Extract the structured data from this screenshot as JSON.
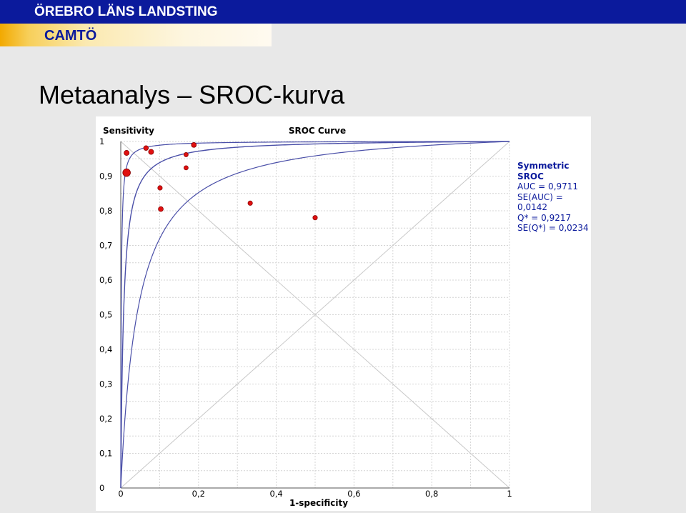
{
  "header": {
    "organization": "ÖREBRO LÄNS LANDSTING",
    "unit": "CAMTÖ"
  },
  "slide": {
    "title": "Metaanalys – SROC-kurva"
  },
  "colors": {
    "brand_blue": "#0b1a9c",
    "accent_orange": "#f2a900",
    "point_red": "#e01010",
    "curve_blue": "#4a4fa8",
    "grid": "#d4d4d4"
  },
  "chart_data": {
    "type": "scatter",
    "title": "SROC Curve",
    "xlabel": "1-specificity",
    "ylabel": "Sensitivity",
    "xlim": [
      0,
      1
    ],
    "ylim": [
      0,
      1
    ],
    "x_ticks": [
      "0",
      "0,2",
      "0,4",
      "0,6",
      "0,8",
      "1"
    ],
    "y_ticks": [
      "0",
      "0,1",
      "0,2",
      "0,3",
      "0,4",
      "0,5",
      "0,6",
      "0,7",
      "0,8",
      "0,9",
      "1"
    ],
    "grid": true,
    "auc": 0.9711,
    "q_star": 0.9217,
    "points": [
      {
        "x": 0.015,
        "y": 0.91,
        "weight": 3.0
      },
      {
        "x": 0.015,
        "y": 0.967,
        "weight": 1.2
      },
      {
        "x": 0.065,
        "y": 0.981,
        "weight": 1.0
      },
      {
        "x": 0.078,
        "y": 0.97,
        "weight": 1.2
      },
      {
        "x": 0.188,
        "y": 0.99,
        "weight": 1.1
      },
      {
        "x": 0.168,
        "y": 0.962,
        "weight": 0.8
      },
      {
        "x": 0.168,
        "y": 0.924,
        "weight": 0.8
      },
      {
        "x": 0.101,
        "y": 0.866,
        "weight": 0.9
      },
      {
        "x": 0.103,
        "y": 0.805,
        "weight": 1.1
      },
      {
        "x": 0.333,
        "y": 0.822,
        "weight": 0.9
      },
      {
        "x": 0.5,
        "y": 0.78,
        "weight": 0.9
      }
    ],
    "diagonals": true,
    "legend": {
      "title": "Symmetric SROC",
      "lines": [
        "AUC = 0,9711",
        "SE(AUC) = 0,0142",
        "Q* = 0,9217",
        "SE(Q*) = 0,0234"
      ]
    }
  }
}
